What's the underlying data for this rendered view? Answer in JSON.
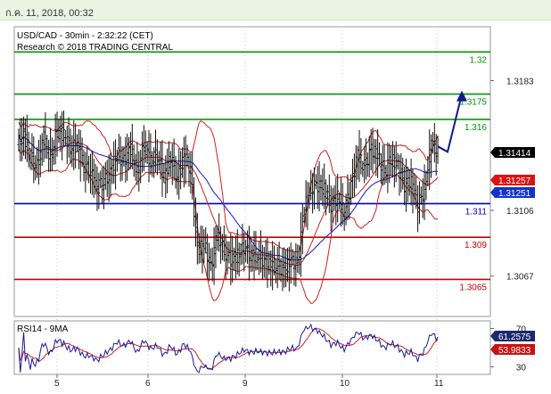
{
  "header": {
    "timestamp": "ก.ค. 11, 2018, 00:32"
  },
  "chart_data": [
    {
      "type": "candlestick",
      "title": "USD/CAD - 30min - 2:32:22 (CET)",
      "subtitle": "Research © 2018 TRADING CENTRAL",
      "ylim": [
        1.3043,
        1.3215
      ],
      "x_ticks": [
        "5",
        "6",
        "9",
        "10",
        "11"
      ],
      "y_ticks": [
        1.3183,
        1.3106,
        1.3067
      ],
      "levels": [
        {
          "value": 1.32,
          "label": "1.32",
          "color": "#009900"
        },
        {
          "value": 1.3175,
          "label": "1.3175",
          "color": "#009900"
        },
        {
          "value": 1.316,
          "label": "1.316",
          "color": "#009900"
        },
        {
          "value": 1.311,
          "label": "1.311",
          "color": "#0000cc"
        },
        {
          "value": 1.309,
          "label": "1.309",
          "color": "#cc0000"
        },
        {
          "value": 1.3065,
          "label": "1.3065",
          "color": "#cc0000"
        }
      ],
      "price_badges": [
        {
          "value": 1.31414,
          "label": "1.31414",
          "bg": "#000000",
          "fg": "#ffffff"
        },
        {
          "value": 1.31257,
          "label": "1.31257",
          "bg": "#dd1111",
          "fg": "#ffffff"
        },
        {
          "value": 1.31251,
          "label": "1.31251",
          "bg": "#1133cc",
          "fg": "#ffffff"
        }
      ],
      "price_ticks": [
        1.3145,
        1.3151,
        1.3138,
        1.3132,
        1.3149,
        1.3137,
        1.3153,
        1.3151,
        1.3143,
        1.3145,
        1.3132,
        1.3129,
        1.3119,
        1.3123,
        1.3128,
        1.3139,
        1.3135,
        1.3143,
        1.3128,
        1.3145,
        1.3135,
        1.3139,
        1.3126,
        1.3137,
        1.3125,
        1.3138,
        1.3129,
        1.3083,
        1.3086,
        1.3072,
        1.3092,
        1.3081,
        1.3077,
        1.3079,
        1.3084,
        1.3079,
        1.3079,
        1.3076,
        1.3073,
        1.3073,
        1.3071,
        1.3075,
        1.3074,
        1.3107,
        1.3119,
        1.3121,
        1.3118,
        1.3109,
        1.3114,
        1.3104,
        1.3121,
        1.3138,
        1.3132,
        1.3142,
        1.3138,
        1.3129,
        1.3136,
        1.3132,
        1.3121,
        1.3122,
        1.3109,
        1.3118,
        1.3145,
        1.3141
      ],
      "forecast_target": 1.3175,
      "ma_color": "#1a1acc",
      "band_color": "#cc2222",
      "indicator": {
        "title": "RSI14 - 9MA",
        "ylim": [
          22,
          78
        ],
        "y_ticks": [
          70,
          30
        ],
        "badges": [
          {
            "value": 61.2575,
            "label": "61.2575",
            "bg": "#1a2a6a",
            "fg": "#ffffff"
          },
          {
            "value": 53.9833,
            "label": "53.9833",
            "bg": "#cc1111",
            "fg": "#ffffff"
          }
        ],
        "rsi_color": "#1a1a99",
        "ma_color": "#cc2222"
      }
    }
  ]
}
